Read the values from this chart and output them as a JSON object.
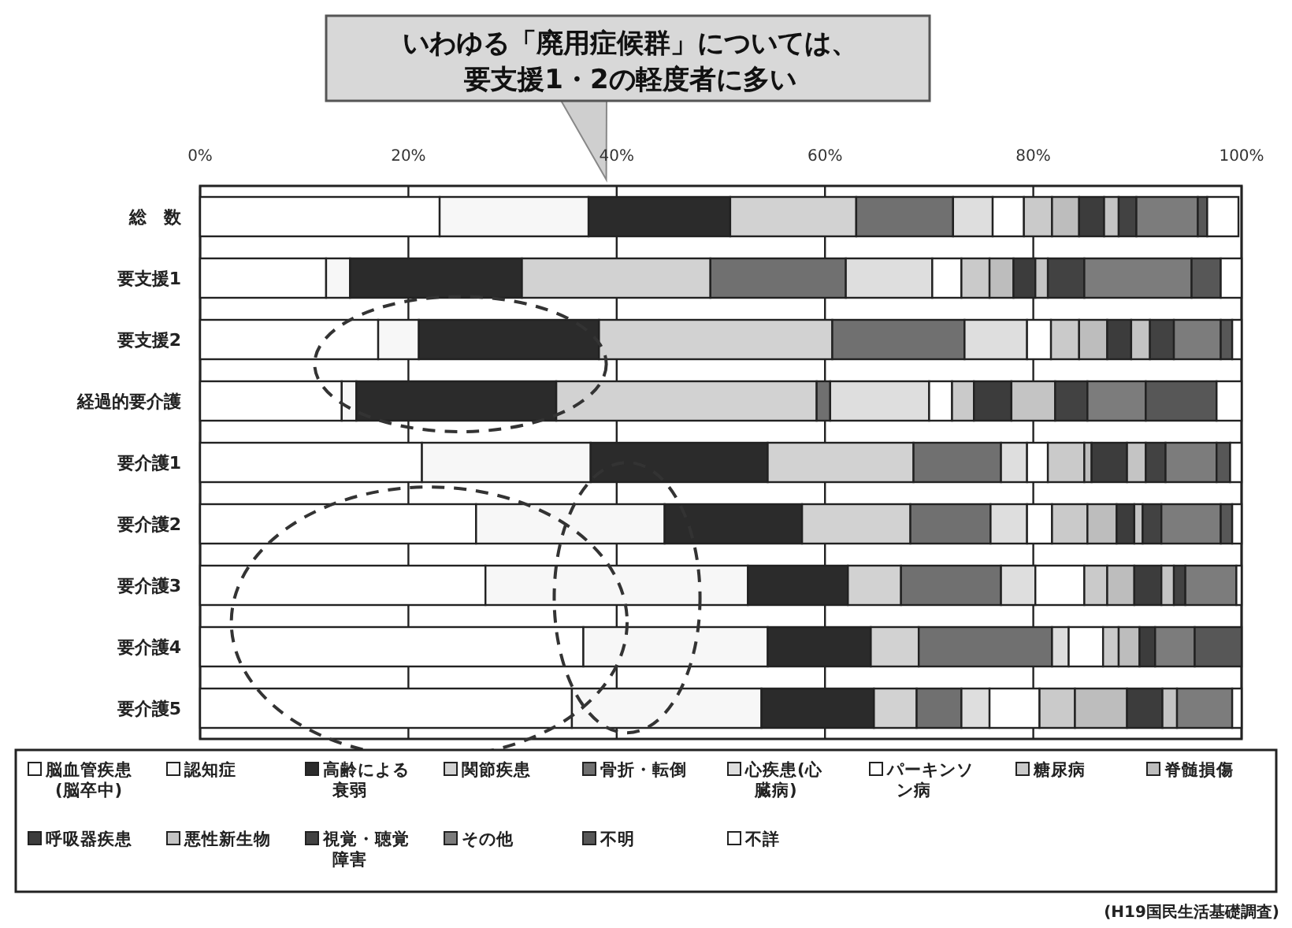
{
  "chart_data": {
    "type": "bar",
    "orientation": "horizontal",
    "stacked": true,
    "grid": "x",
    "legend": "bottom",
    "categories": [
      "総　数",
      "要支援1",
      "要支援2",
      "経過的要介護",
      "要介護1",
      "要介護2",
      "要介護3",
      "要介護4",
      "要介護5"
    ],
    "xlim": [
      0,
      100
    ],
    "xticks": [
      {
        "value": 0,
        "label": "0%"
      },
      {
        "value": 20,
        "label": "20%"
      },
      {
        "value": 40,
        "label": "40%"
      },
      {
        "value": 60,
        "label": "60%"
      },
      {
        "value": 80,
        "label": "80%"
      },
      {
        "value": 100,
        "label": "100%"
      }
    ],
    "series": [
      {
        "name": "脳血管疾患(脳卒中)",
        "color": "#ffffff",
        "values": [
          23.0,
          12.1,
          17.1,
          13.6,
          21.3,
          26.5,
          27.4,
          36.8,
          35.7
        ]
      },
      {
        "name": "認知症",
        "color": "#f7f7f7",
        "values": [
          14.3,
          2.3,
          3.9,
          1.4,
          16.2,
          18.1,
          25.2,
          17.7,
          18.2
        ]
      },
      {
        "name": "高齢による衰弱",
        "color": "#2b2b2b",
        "values": [
          13.6,
          16.5,
          17.3,
          19.2,
          17.0,
          13.2,
          9.6,
          9.9,
          10.8
        ]
      },
      {
        "name": "関節疾患",
        "color": "#d2d2d2",
        "values": [
          12.1,
          18.1,
          22.4,
          25.0,
          14.0,
          10.4,
          5.1,
          4.6,
          4.1
        ]
      },
      {
        "name": "骨折・転倒",
        "color": "#707070",
        "values": [
          9.3,
          13.0,
          12.7,
          1.3,
          8.4,
          7.7,
          9.6,
          12.8,
          4.3
        ]
      },
      {
        "name": "心疾患(心臓病)",
        "color": "#dedede",
        "values": [
          3.8,
          8.3,
          6.0,
          9.5,
          2.5,
          3.5,
          3.3,
          1.6,
          2.7
        ]
      },
      {
        "name": "パーキンソン病",
        "color": "#ffffff",
        "values": [
          3.0,
          2.8,
          2.3,
          2.2,
          2.0,
          2.4,
          4.7,
          3.3,
          4.8
        ]
      },
      {
        "name": "糖尿病",
        "color": "#cacaca",
        "values": [
          2.7,
          2.7,
          2.7,
          2.1,
          3.5,
          3.4,
          2.2,
          1.5,
          3.4
        ]
      },
      {
        "name": "脊髄損傷",
        "color": "#bdbdbd",
        "values": [
          2.6,
          2.3,
          2.7,
          null,
          0.7,
          2.8,
          2.6,
          2.0,
          5.0
        ]
      },
      {
        "name": "呼吸器疾患",
        "color": "#3c3c3c",
        "values": [
          2.4,
          2.1,
          2.3,
          3.6,
          3.4,
          1.7,
          2.6,
          1.5,
          3.4
        ]
      },
      {
        "name": "悪性新生物",
        "color": "#c4c4c4",
        "values": [
          1.4,
          1.2,
          1.8,
          4.2,
          1.8,
          0.8,
          1.2,
          null,
          1.4
        ]
      },
      {
        "name": "視覚・聴覚障害",
        "color": "#424242",
        "values": [
          1.7,
          3.5,
          2.3,
          3.1,
          1.9,
          1.8,
          1.1,
          null,
          null
        ]
      },
      {
        "name": "その他",
        "color": "#7c7c7c",
        "values": [
          5.9,
          10.3,
          4.5,
          5.6,
          4.9,
          5.7,
          4.9,
          3.8,
          5.3
        ]
      },
      {
        "name": "不明",
        "color": "#575757",
        "values": [
          0.9,
          2.8,
          1.1,
          6.8,
          1.3,
          1.1,
          null,
          4.5,
          null
        ]
      },
      {
        "name": "不詳",
        "color": "#ffffff",
        "values": [
          3.0,
          2.0,
          0.9,
          2.4,
          1.1,
          0.9,
          0.5,
          null,
          0.9
        ]
      }
    ],
    "annotations": [
      "いわゆる「廃用症候群」については、",
      "要支援1・2の軽度者に多い",
      "(H19国民生活基礎調査)"
    ]
  }
}
